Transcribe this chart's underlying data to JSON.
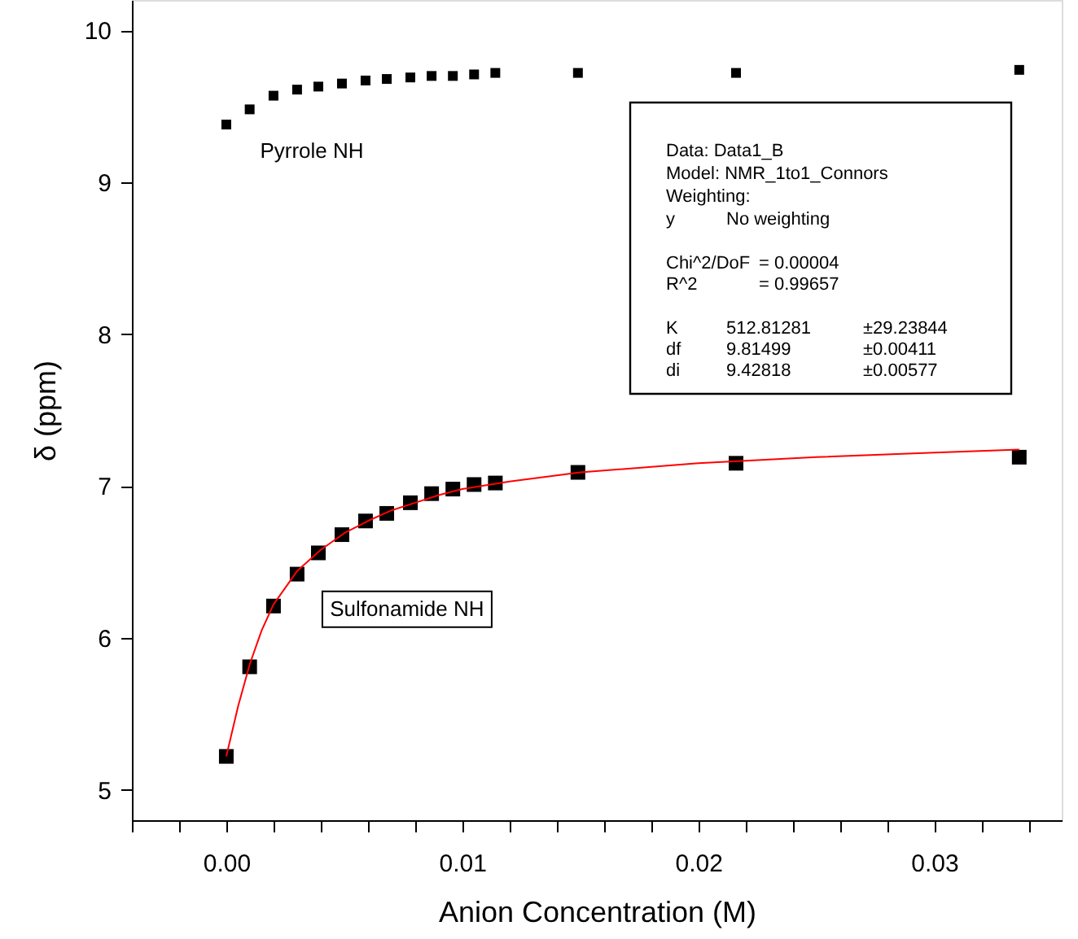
{
  "chart_data": {
    "type": "scatter",
    "xlabel": "Anion Concentration (M)",
    "ylabel": "δ (ppm)",
    "x": [
      0.0,
      0.00099,
      0.002,
      0.003,
      0.0039,
      0.0049,
      0.0059,
      0.0068,
      0.0078,
      0.0087,
      0.0096,
      0.0105,
      0.0114,
      0.0149,
      0.0216,
      0.0336
    ],
    "series": [
      {
        "name": "Pyrrole NH",
        "color": "#000000",
        "marker": "square",
        "values": [
          9.38,
          9.48,
          9.57,
          9.61,
          9.63,
          9.65,
          9.67,
          9.68,
          9.69,
          9.7,
          9.7,
          9.71,
          9.72,
          9.72,
          9.72,
          9.74
        ]
      },
      {
        "name": "Sulfonamide NH",
        "color": "#000000",
        "marker": "square",
        "values": [
          5.22,
          5.81,
          6.21,
          6.42,
          6.56,
          6.68,
          6.77,
          6.82,
          6.89,
          6.95,
          6.98,
          7.01,
          7.02,
          7.09,
          7.15,
          7.19
        ]
      },
      {
        "type": "line",
        "color": "#ff0000",
        "marker": "none",
        "line_style": "solid",
        "x": [
          0.0,
          0.0005,
          0.001,
          0.0015,
          0.002,
          0.003,
          0.004,
          0.005,
          0.006,
          0.007,
          0.008,
          0.009,
          0.01,
          0.012,
          0.015,
          0.02,
          0.025,
          0.03,
          0.0336
        ],
        "values": [
          5.22,
          5.55,
          5.83,
          6.05,
          6.22,
          6.44,
          6.58,
          6.69,
          6.77,
          6.84,
          6.89,
          6.94,
          6.98,
          7.03,
          7.09,
          7.15,
          7.19,
          7.22,
          7.24
        ]
      }
    ],
    "xlim": [
      -0.004,
      0.0354
    ],
    "xticks": [
      {
        "value": -0.004,
        "label": null
      },
      {
        "value": -0.002,
        "label": null
      },
      {
        "value": 0,
        "label": "0.00"
      },
      {
        "value": 0.002,
        "label": null
      },
      {
        "value": 0.004,
        "label": null
      },
      {
        "value": 0.006,
        "label": null
      },
      {
        "value": 0.008,
        "label": null
      },
      {
        "value": 0.01,
        "label": "0.01"
      },
      {
        "value": 0.012,
        "label": null
      },
      {
        "value": 0.014,
        "label": null
      },
      {
        "value": 0.016,
        "label": null
      },
      {
        "value": 0.018,
        "label": null
      },
      {
        "value": 0.02,
        "label": "0.02"
      },
      {
        "value": 0.022,
        "label": null
      },
      {
        "value": 0.024,
        "label": null
      },
      {
        "value": 0.026,
        "label": null
      },
      {
        "value": 0.028,
        "label": null
      },
      {
        "value": 0.03,
        "label": "0.03"
      },
      {
        "value": 0.032,
        "label": null
      },
      {
        "value": 0.034,
        "label": null
      }
    ],
    "ylim": [
      4.8,
      10.2
    ],
    "yticks": [
      5,
      6,
      7,
      8,
      9,
      10
    ],
    "grid": false,
    "annotations": [
      "Data: Data1_B",
      "Model: NMR_1to1_Connors",
      "Weighting:",
      "y\tNo weighting",
      "Chi^2/DoF\t= 0.00004",
      "R^2\t= 0.99657",
      "K\t512.81281\t±29.23844",
      "df\t9.81499\t±0.00411",
      "di\t9.42818\t±0.00577"
    ]
  }
}
